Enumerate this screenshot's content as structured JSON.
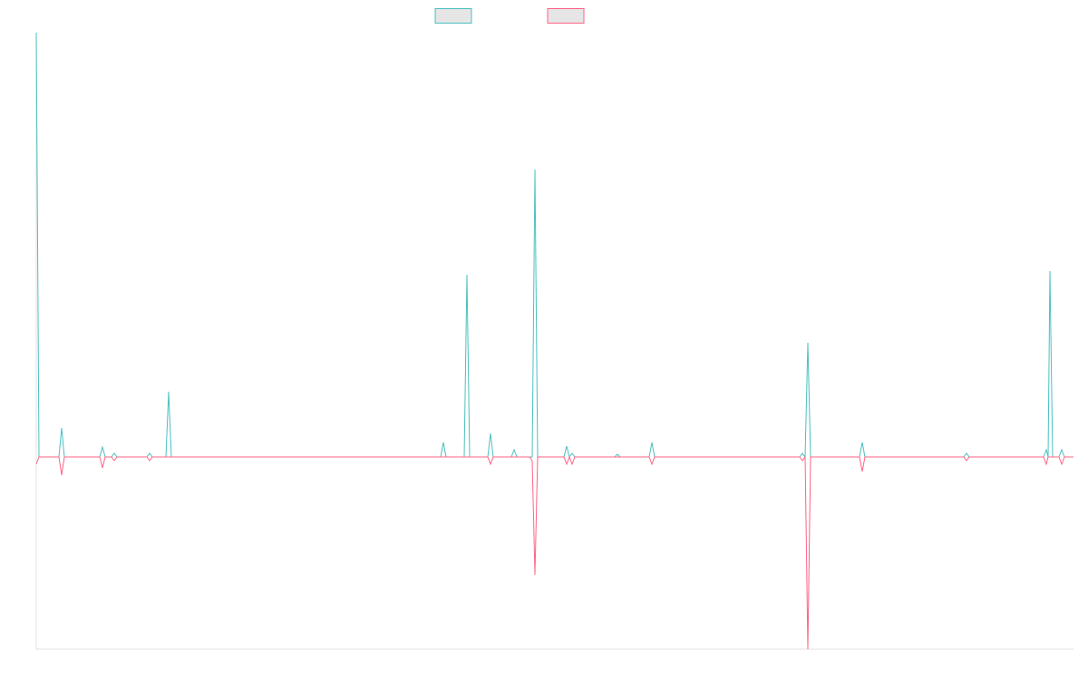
{
  "chart_data": {
    "type": "line",
    "x": [
      0,
      3,
      25,
      28,
      31,
      70,
      73,
      76,
      83,
      86,
      89,
      122,
      125,
      128,
      143,
      146,
      149,
      446,
      449,
      452,
      472,
      475,
      478,
      498,
      501,
      504,
      524,
      527,
      530,
      544,
      547,
      550,
      553,
      582,
      585,
      588,
      591,
      594,
      638,
      641,
      644,
      676,
      679,
      682,
      842,
      845,
      848,
      851,
      854,
      908,
      911,
      914,
      1023,
      1026,
      1029,
      1111,
      1114,
      1116,
      1118,
      1121,
      1128,
      1131,
      1134,
      1144
    ],
    "series": [
      {
        "color": "#4bc0c0",
        "values": [
          468,
          0,
          0,
          32,
          0,
          0,
          11,
          0,
          0,
          4,
          0,
          0,
          4,
          0,
          0,
          72,
          0,
          0,
          16,
          0,
          0,
          201,
          0,
          0,
          26,
          0,
          0,
          8,
          0,
          0,
          0,
          317,
          0,
          0,
          12,
          0,
          4,
          0,
          0,
          3,
          0,
          0,
          16,
          0,
          0,
          4,
          0,
          126,
          0,
          0,
          16,
          0,
          0,
          4,
          0,
          0,
          8,
          0,
          205,
          0,
          0,
          8,
          0,
          0
        ]
      },
      {
        "color": "#ff6384",
        "values": [
          -8,
          0,
          0,
          -20,
          0,
          0,
          -12,
          0,
          0,
          -4,
          0,
          0,
          -4,
          0,
          0,
          0,
          0,
          0,
          0,
          0,
          0,
          0,
          0,
          0,
          -8,
          0,
          0,
          0,
          0,
          0,
          -4,
          -130,
          0,
          0,
          -8,
          0,
          -8,
          0,
          0,
          0,
          0,
          0,
          -8,
          0,
          0,
          -4,
          0,
          -212,
          0,
          0,
          -16,
          0,
          0,
          -4,
          0,
          0,
          -8,
          0,
          0,
          0,
          0,
          -8,
          0,
          0
        ]
      }
    ],
    "xlim": [
      0,
      1144
    ],
    "ylim": [
      -212,
      468
    ]
  }
}
